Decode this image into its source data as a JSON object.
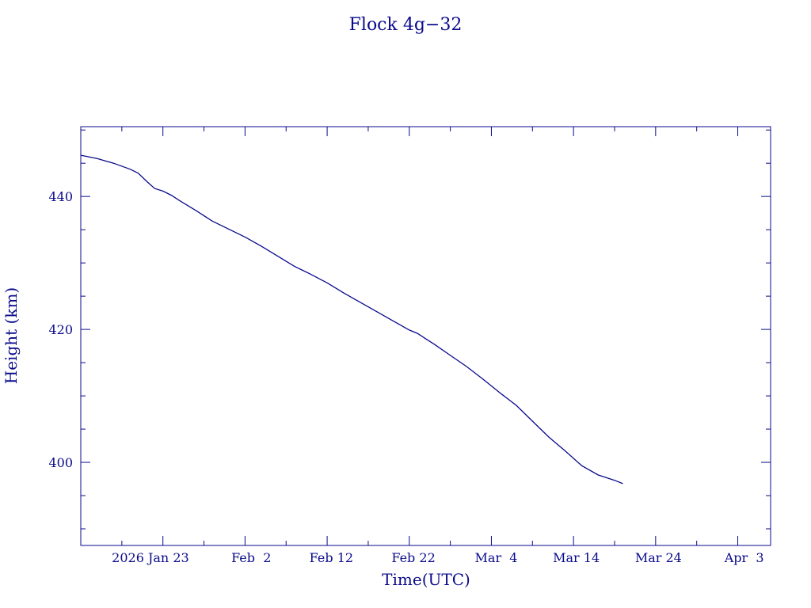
{
  "chart_data": {
    "type": "line",
    "title": "Flock 4g−32",
    "xlabel": "Time(UTC)",
    "ylabel": "Height (km)",
    "color": "#0a0a8c",
    "grid": false,
    "legend": "none",
    "xlim": [
      "2026-01-13",
      "2026-04-07"
    ],
    "ylim": [
      387.5,
      450.5
    ],
    "x_tick_labels": [
      "2026 Jan 23",
      "Feb  2",
      "Feb 12",
      "Feb 22",
      "Mar  4",
      "Mar 14",
      "Mar 24",
      "Apr  3"
    ],
    "x_tick_dates": [
      "2026-01-23",
      "2026-02-02",
      "2026-02-12",
      "2026-02-22",
      "2026-03-04",
      "2026-03-14",
      "2026-03-24",
      "2026-04-03"
    ],
    "y_ticks": [
      400,
      420,
      440
    ],
    "series": [
      {
        "x": [
          "2026-01-13",
          "2026-01-15",
          "2026-01-17",
          "2026-01-19",
          "2026-01-20",
          "2026-01-21",
          "2026-01-22",
          "2026-01-23",
          "2026-01-24",
          "2026-01-25",
          "2026-01-27",
          "2026-01-29",
          "2026-01-31",
          "2026-02-02",
          "2026-02-04",
          "2026-02-06",
          "2026-02-08",
          "2026-02-10",
          "2026-02-12",
          "2026-02-14",
          "2026-02-16",
          "2026-02-18",
          "2026-02-20",
          "2026-02-22",
          "2026-02-23",
          "2026-02-24",
          "2026-02-25",
          "2026-02-27",
          "2026-03-01",
          "2026-03-03",
          "2026-03-05",
          "2026-03-07",
          "2026-03-09",
          "2026-03-11",
          "2026-03-13",
          "2026-03-15",
          "2026-03-17",
          "2026-03-19",
          "2026-03-20"
        ],
        "y": [
          446.2,
          445.7,
          445.0,
          444.1,
          443.5,
          442.3,
          441.2,
          440.8,
          440.2,
          439.4,
          437.9,
          436.3,
          435.1,
          433.9,
          432.5,
          431.0,
          429.5,
          428.3,
          427.0,
          425.5,
          424.1,
          422.7,
          421.3,
          419.9,
          419.4,
          418.6,
          417.8,
          416.1,
          414.4,
          412.5,
          410.5,
          408.6,
          406.2,
          403.8,
          401.7,
          399.5,
          398.1,
          397.3,
          396.8
        ]
      }
    ]
  }
}
